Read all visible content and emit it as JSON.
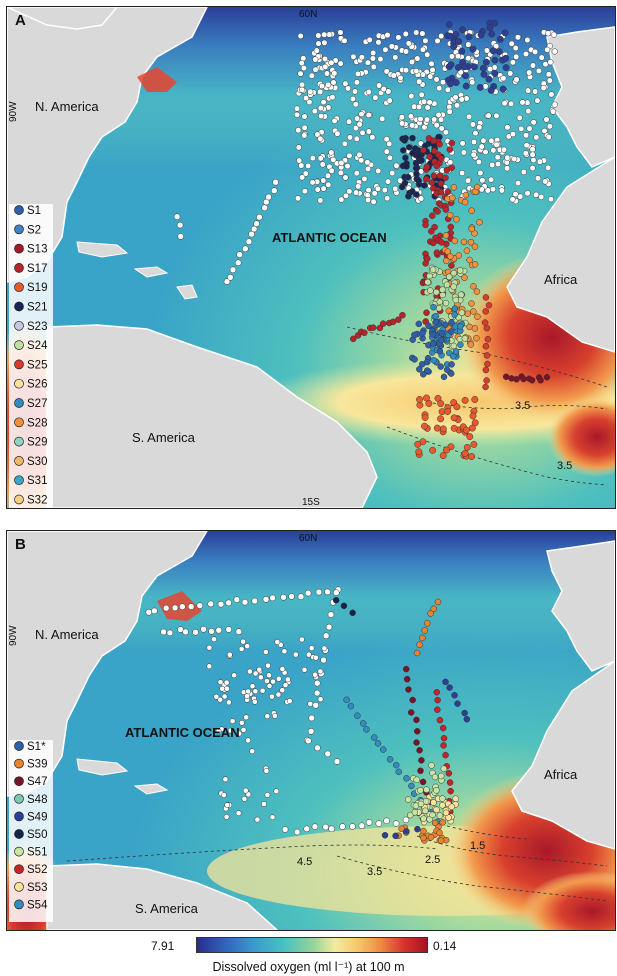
{
  "panels": [
    {
      "id": "A",
      "letter": "A",
      "lat_top": "60N",
      "lat_bottom": "15S",
      "lon_left": "90W",
      "region_labels": {
        "north_america": "N. America",
        "south_america": "S. America",
        "africa": "Africa",
        "ocean": "ATLANTIC OCEAN"
      },
      "contours": [
        "3.5",
        "3.5"
      ],
      "legend": [
        {
          "label": "S1",
          "color": "#2e5fa8"
        },
        {
          "label": "S2",
          "color": "#3f83c2"
        },
        {
          "label": "S13",
          "color": "#a31c2b"
        },
        {
          "label": "S17",
          "color": "#b9242b"
        },
        {
          "label": "S19",
          "color": "#e8592d"
        },
        {
          "label": "S21",
          "color": "#1c2452"
        },
        {
          "label": "S23",
          "color": "#c9c7e6"
        },
        {
          "label": "S24",
          "color": "#bfe0a0"
        },
        {
          "label": "S25",
          "color": "#d93a2c"
        },
        {
          "label": "S26",
          "color": "#f7e39b"
        },
        {
          "label": "S27",
          "color": "#2f8cc0"
        },
        {
          "label": "S28",
          "color": "#f0913e"
        },
        {
          "label": "S29",
          "color": "#8fd3c0"
        },
        {
          "label": "S30",
          "color": "#f2b66a"
        },
        {
          "label": "S31",
          "color": "#3aa6c8"
        },
        {
          "label": "S32",
          "color": "#f8cf86"
        }
      ]
    },
    {
      "id": "B",
      "letter": "B",
      "lat_top": "60N",
      "lon_left": "90W",
      "region_labels": {
        "north_america": "N. America",
        "south_america": "S. America",
        "africa": "Africa",
        "ocean": "ATLANTIC OCEAN"
      },
      "contours": [
        "4.5",
        "3.5",
        "2.5",
        "1.5"
      ],
      "legend": [
        {
          "label": "S1*",
          "color": "#2e5fa8"
        },
        {
          "label": "S39",
          "color": "#e8832f"
        },
        {
          "label": "S47",
          "color": "#7a1325"
        },
        {
          "label": "S48",
          "color": "#7ec9b4"
        },
        {
          "label": "S49",
          "color": "#2c3f96"
        },
        {
          "label": "S50",
          "color": "#16244a"
        },
        {
          "label": "S51",
          "color": "#c6e6a4"
        },
        {
          "label": "S52",
          "color": "#c7232b"
        },
        {
          "label": "S53",
          "color": "#f5e49a"
        },
        {
          "label": "S54",
          "color": "#2f8dc1"
        }
      ]
    }
  ],
  "colorbar": {
    "min_label": "7.91",
    "max_label": "0.14",
    "title": "Dissolved oxygen (ml l⁻¹) at 100 m",
    "low_color": "#2a2c8e",
    "high_color": "#a51422"
  }
}
